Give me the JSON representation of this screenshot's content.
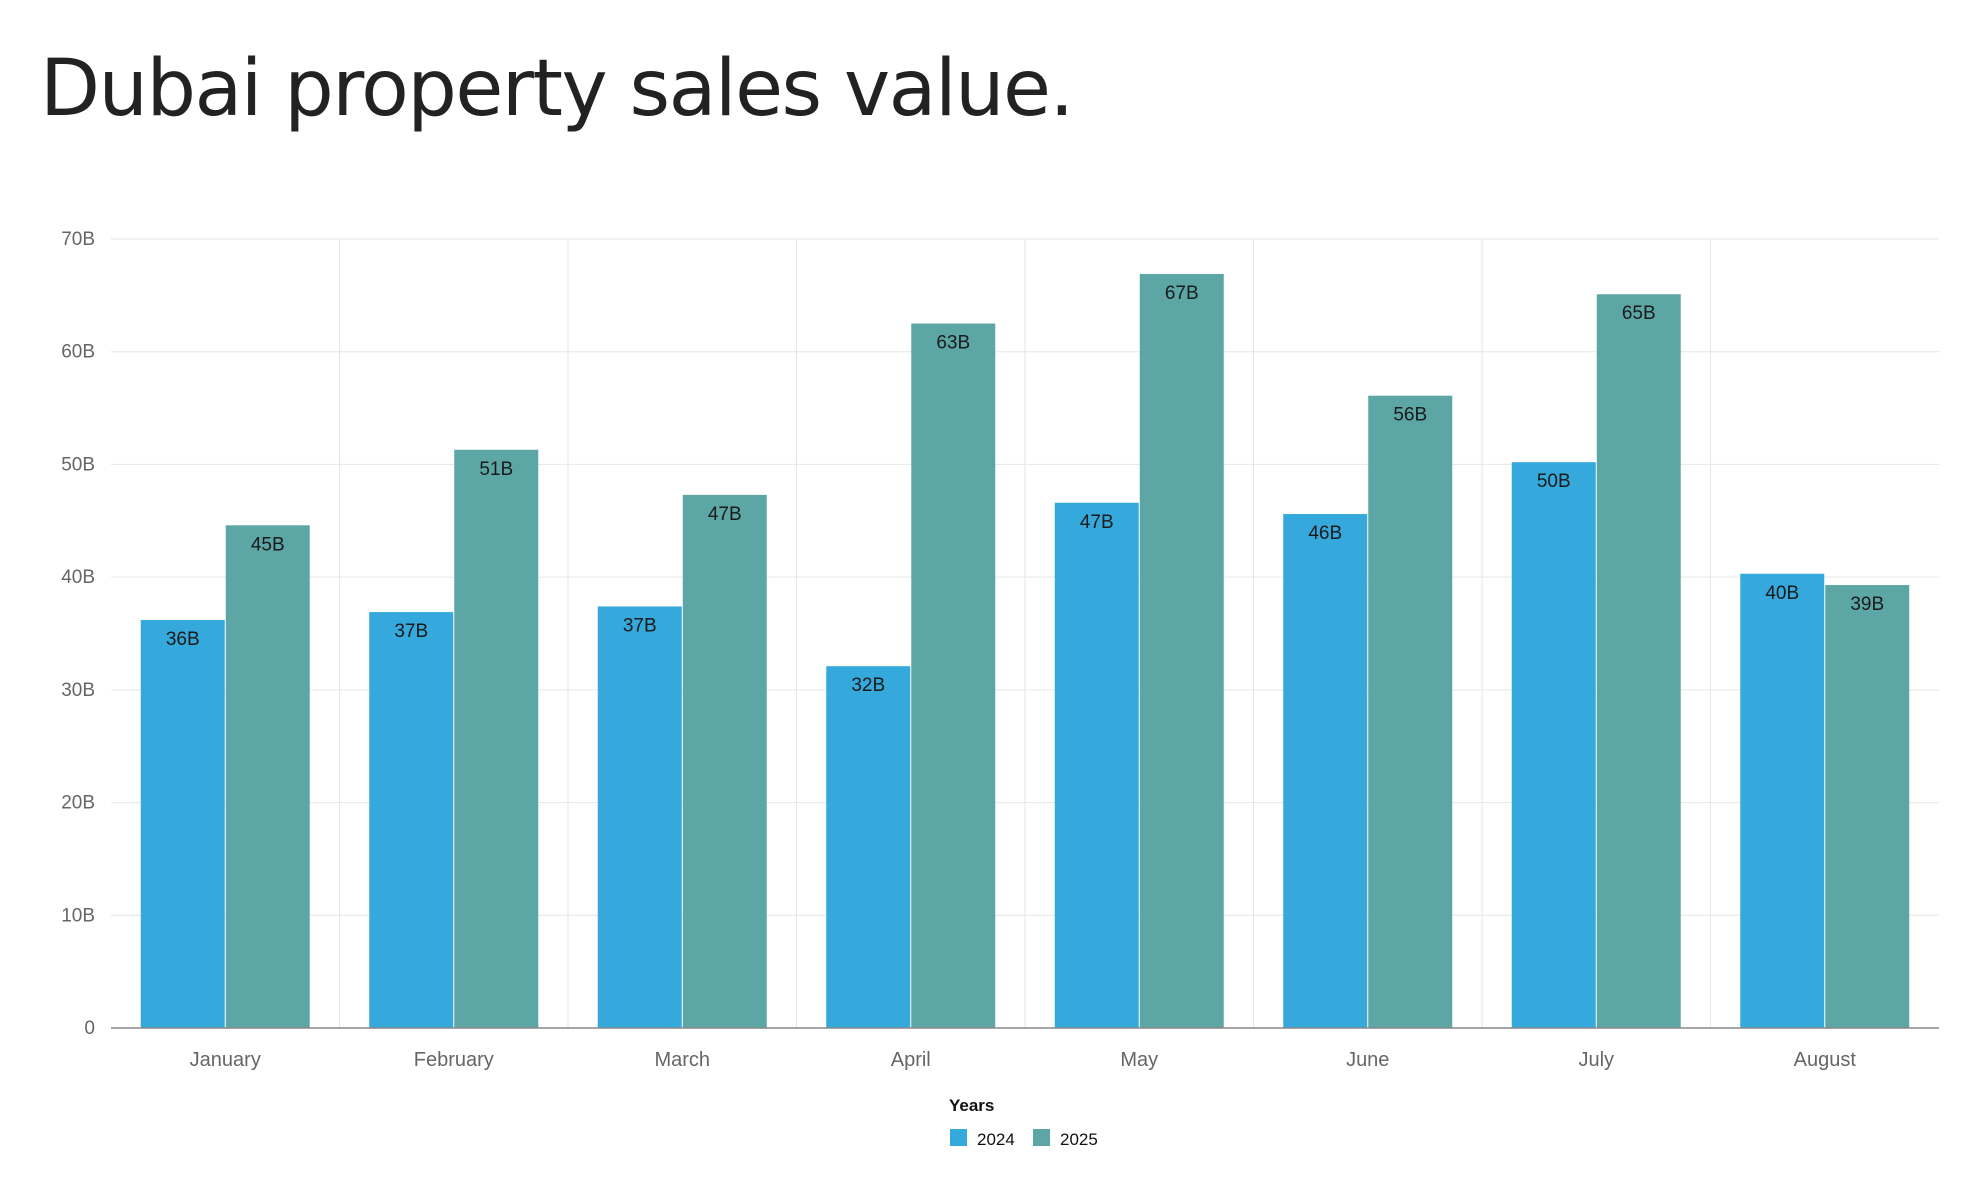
{
  "chart_data": {
    "type": "bar",
    "title": "Dubai property sales value.",
    "xlabel": "",
    "ylabel": "",
    "ylim": [
      0,
      70
    ],
    "yticks": [
      0,
      10,
      20,
      30,
      40,
      50,
      60,
      70
    ],
    "ytick_labels": [
      "0",
      "10B",
      "20B",
      "30B",
      "40B",
      "50B",
      "60B",
      "70B"
    ],
    "grid": true,
    "categories": [
      "January",
      "February",
      "March",
      "April",
      "May",
      "June",
      "July",
      "August"
    ],
    "series": [
      {
        "name": "2024",
        "color": "#35a8dc",
        "values": [
          36.2,
          36.9,
          37.4,
          32.1,
          46.6,
          45.6,
          50.2,
          40.3
        ],
        "labels": [
          "36B",
          "37B",
          "37B",
          "32B",
          "47B",
          "46B",
          "50B",
          "40B"
        ]
      },
      {
        "name": "2025",
        "color": "#5ca7a5",
        "values": [
          44.6,
          51.3,
          47.3,
          62.5,
          66.9,
          56.1,
          65.1,
          39.3
        ],
        "labels": [
          "45B",
          "51B",
          "47B",
          "63B",
          "67B",
          "56B",
          "65B",
          "39B"
        ]
      }
    ],
    "legend": {
      "title": "Years",
      "placement": "bottom"
    }
  }
}
